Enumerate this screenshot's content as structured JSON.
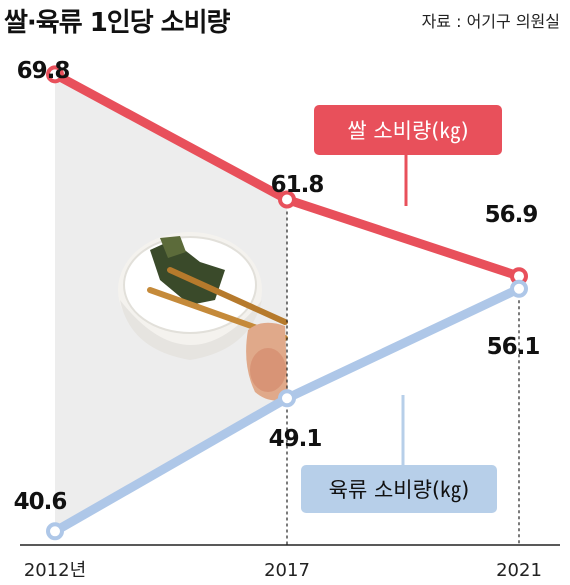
{
  "title": "쌀·육류 1인당 소비량",
  "source": "자료 : 어기구 의원실",
  "colors": {
    "rice": "#e8505b",
    "meat": "#aec7e8",
    "rice_box": "#e8505b",
    "meat_box": "#b7cfe9",
    "shade": "#ededed",
    "gridline": "#222222"
  },
  "icons": [
    "rice-bowl-with-seaweed-image"
  ],
  "chart_data": {
    "type": "line",
    "title": "쌀·육류 1인당 소비량",
    "x": [
      "2012년",
      "2017",
      "2021"
    ],
    "series": [
      {
        "name": "쌀 소비량(㎏)",
        "values": [
          69.8,
          61.8,
          56.9
        ],
        "labels": [
          "69.8",
          "61.8",
          "56.9"
        ]
      },
      {
        "name": "육류 소비량(㎏)",
        "values": [
          40.6,
          49.1,
          56.1
        ],
        "labels": [
          "40.6",
          "49.1",
          "56.1"
        ]
      }
    ],
    "grid": false,
    "legend": "inline-boxes"
  }
}
